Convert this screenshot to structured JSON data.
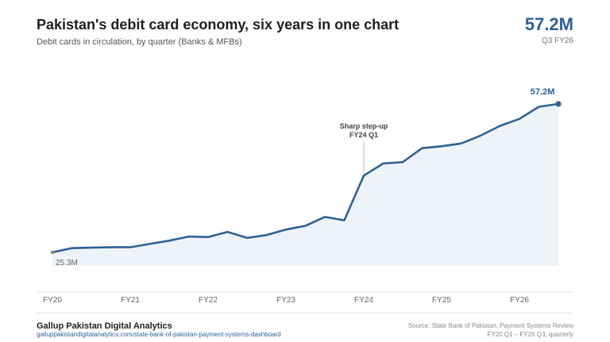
{
  "header": {
    "title": "Pakistan's debit card economy, six years in one chart",
    "subtitle": "Debit cards in circulation, by quarter (Banks & MFBs)"
  },
  "kpi": {
    "value": "57.2M",
    "label": "Q3 FY26"
  },
  "footer": {
    "brand": "Gallup Pakistan Digital Analytics",
    "link": "galluppakistandigitalanalytics.com/state-bank-of-pakistan-payment-systems-dashboard",
    "source": "Source: State Bank of Pakistan, Payment Systems Review",
    "period": "FY20 Q1 – FY26 Q3, quarterly"
  },
  "colors": {
    "line": "#2f6196",
    "area": "#eef3f9",
    "accent": "#2f5f93"
  },
  "chart_data": {
    "type": "area",
    "title": "Pakistan's debit card economy, six years in one chart",
    "subtitle": "Debit cards in circulation, by quarter (Banks & MFBs)",
    "xlabel": "",
    "ylabel": "",
    "x_ticks": [
      "FY20",
      "FY21",
      "FY22",
      "FY23",
      "FY24",
      "FY25",
      "FY26"
    ],
    "categories": [
      "FY20 Q1",
      "FY20 Q2",
      "FY20 Q3",
      "FY20 Q4",
      "FY21 Q1",
      "FY21 Q2",
      "FY21 Q3",
      "FY21 Q4",
      "FY22 Q1",
      "FY22 Q2",
      "FY22 Q3",
      "FY22 Q4",
      "FY23 Q1",
      "FY23 Q2",
      "FY23 Q3",
      "FY23 Q4",
      "FY24 Q1",
      "FY24 Q2",
      "FY24 Q3",
      "FY24 Q4",
      "FY25 Q1",
      "FY25 Q2",
      "FY25 Q3",
      "FY25 Q4",
      "FY26 Q1",
      "FY26 Q2",
      "FY26 Q3"
    ],
    "series": [
      {
        "name": "",
        "values": [
          25.3,
          26.2,
          26.3,
          26.4,
          26.4,
          27.1,
          27.8,
          28.7,
          28.6,
          29.7,
          28.4,
          29.0,
          30.2,
          31.0,
          32.9,
          32.2,
          41.8,
          44.4,
          44.7,
          47.7,
          48.1,
          48.7,
          50.4,
          52.5,
          54.0,
          56.6,
          57.2
        ]
      }
    ],
    "ylim": [
      20,
      60
    ],
    "grid": false,
    "legend": "none",
    "start_label": "25.3M",
    "end_label": "57.2M",
    "annotation": {
      "category": "FY24 Q1",
      "lines": [
        "Sharp step-up",
        "FY24 Q1"
      ]
    }
  }
}
